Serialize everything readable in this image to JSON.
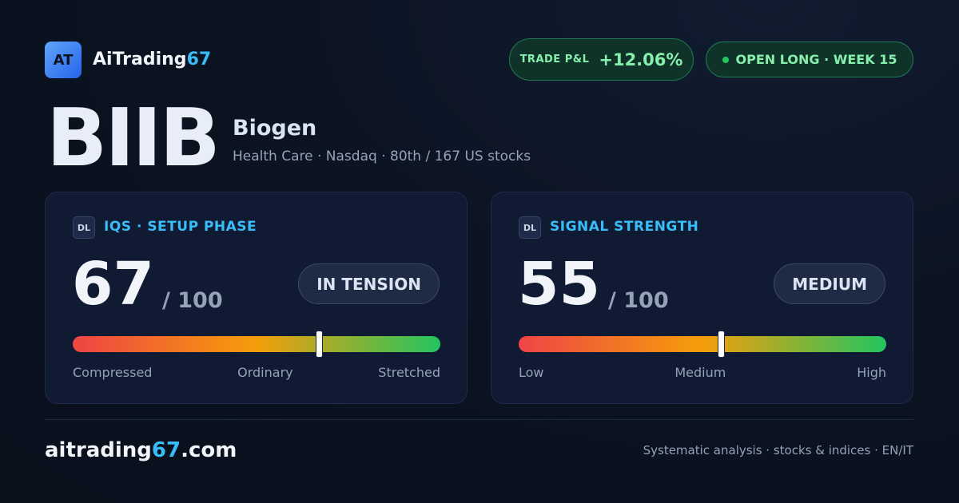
{
  "header": {
    "logo": "AT",
    "brand": {
      "name": "AiTrading",
      "accent": "67"
    },
    "pnl": {
      "label": "TRADE P&L",
      "value": "+12.06%"
    },
    "status": "OPEN LONG · WEEK 15"
  },
  "stock": {
    "ticker": "BIIB",
    "name": "Biogen",
    "details": "Health Care · Nasdaq · 80th / 167 US stocks"
  },
  "cards": [
    {
      "badge": "DL",
      "title": "IQS · SETUP PHASE",
      "score": 67,
      "max": {
        "value": 100,
        "label": "/ 100"
      },
      "state": "IN TENSION",
      "scale_labels": [
        "Compressed",
        "Ordinary",
        "Stretched"
      ]
    },
    {
      "badge": "DL",
      "title": "SIGNAL STRENGTH",
      "score": 55,
      "max": {
        "value": 100,
        "label": "/ 100"
      },
      "state": "MEDIUM",
      "scale_labels": [
        "Low",
        "Medium",
        "High"
      ]
    }
  ],
  "footer": {
    "site": {
      "name": "aitrading",
      "accent": "67",
      "tld": ".com"
    },
    "tagline": "Systematic analysis · stocks & indices · EN/IT"
  }
}
